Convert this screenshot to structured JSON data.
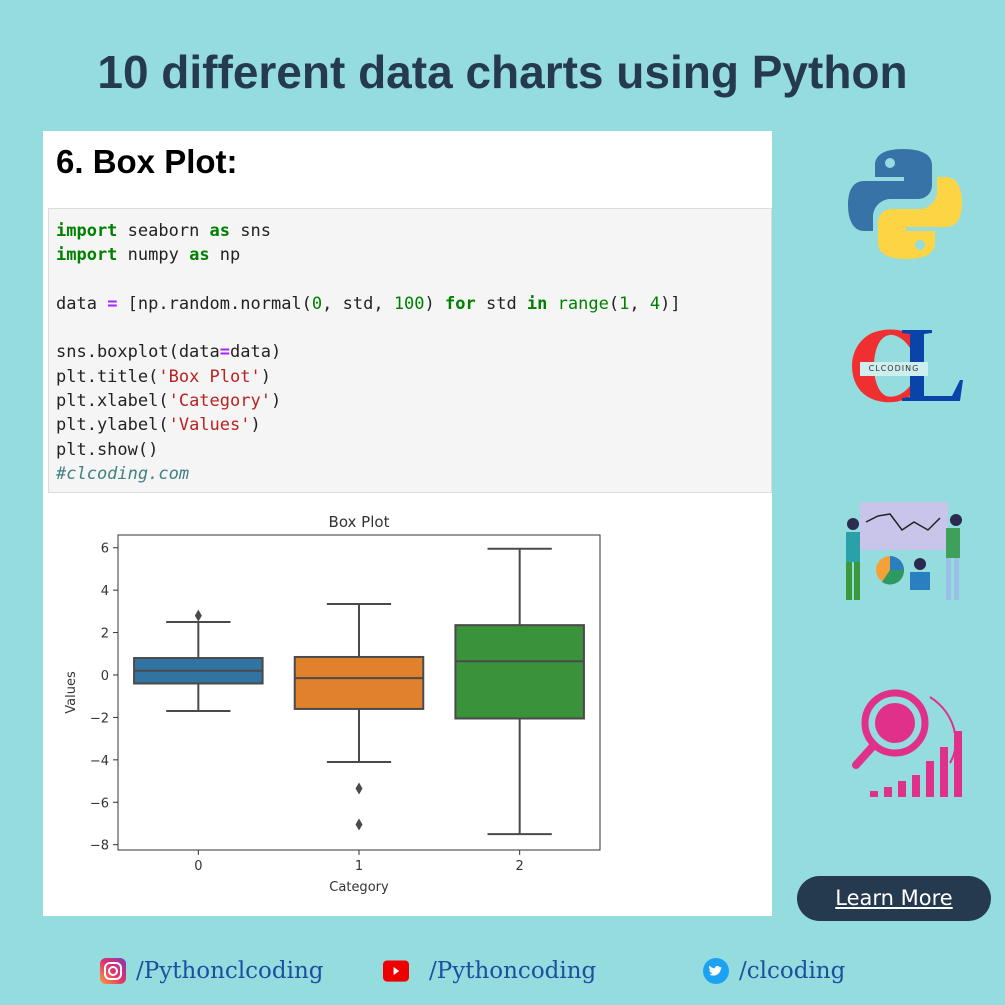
{
  "headline": "10 different data charts using Python",
  "section_title": "6. Box Plot:",
  "code_lines": [
    [
      [
        "import",
        "kw"
      ],
      [
        " seaborn ",
        ""
      ],
      [
        "as",
        "kw"
      ],
      [
        " sns",
        ""
      ]
    ],
    [
      [
        "import",
        "kw"
      ],
      [
        " numpy ",
        ""
      ],
      [
        "as",
        "kw"
      ],
      [
        " np",
        ""
      ]
    ],
    [],
    [
      [
        "data ",
        ""
      ],
      [
        "=",
        "op"
      ],
      [
        " [np.random.normal(",
        ""
      ],
      [
        "0",
        "num"
      ],
      [
        ", std, ",
        ""
      ],
      [
        "100",
        "num"
      ],
      [
        ") ",
        ""
      ],
      [
        "for",
        "kw"
      ],
      [
        " std ",
        ""
      ],
      [
        "in",
        "kw"
      ],
      [
        " ",
        ""
      ],
      [
        "range",
        "bi"
      ],
      [
        "(",
        ""
      ],
      [
        "1",
        "num"
      ],
      [
        ", ",
        ""
      ],
      [
        "4",
        "num"
      ],
      [
        ")]",
        ""
      ]
    ],
    [],
    [
      [
        "sns.boxplot(data",
        ""
      ],
      [
        "=",
        "op"
      ],
      [
        "data)",
        ""
      ]
    ],
    [
      [
        "plt.title(",
        ""
      ],
      [
        "'Box Plot'",
        "str"
      ],
      [
        ")",
        ""
      ]
    ],
    [
      [
        "plt.xlabel(",
        ""
      ],
      [
        "'Category'",
        "str"
      ],
      [
        ")",
        ""
      ]
    ],
    [
      [
        "plt.ylabel(",
        ""
      ],
      [
        "'Values'",
        "str"
      ],
      [
        ")",
        ""
      ]
    ],
    [
      [
        "plt.show()",
        ""
      ]
    ],
    [
      [
        "#clcoding.com",
        "cm"
      ]
    ]
  ],
  "chart_data": {
    "type": "box",
    "title": "Box Plot",
    "xlabel": "Category",
    "ylabel": "Values",
    "categories": [
      "0",
      "1",
      "2"
    ],
    "ylim": [
      -8.25,
      6.6
    ],
    "yticks": [
      6,
      4,
      2,
      0,
      -2,
      -4,
      -6,
      -8
    ],
    "ytick_labels": [
      "6",
      "4",
      "2",
      "0",
      "−2",
      "−4",
      "−6",
      "−8"
    ],
    "series": [
      {
        "name": "0",
        "whislo": -1.7,
        "q1": -0.4,
        "median": 0.2,
        "q3": 0.8,
        "whishi": 2.5,
        "outliers": [
          2.8
        ],
        "color": "#3274a1"
      },
      {
        "name": "1",
        "whislo": -4.1,
        "q1": -1.6,
        "median": -0.15,
        "q3": 0.85,
        "whishi": 3.35,
        "outliers": [
          -5.35,
          -7.05
        ],
        "color": "#e1812c"
      },
      {
        "name": "2",
        "whislo": -7.5,
        "q1": -2.05,
        "median": 0.65,
        "q3": 2.35,
        "whishi": 5.95,
        "outliers": [],
        "color": "#3a923a"
      }
    ],
    "grid": false
  },
  "logo_text": "CLCODING",
  "learn_more": "Learn More",
  "social": {
    "instagram": "/Pythonclcoding",
    "youtube": "/Pythoncoding",
    "twitter": "/clcoding"
  }
}
